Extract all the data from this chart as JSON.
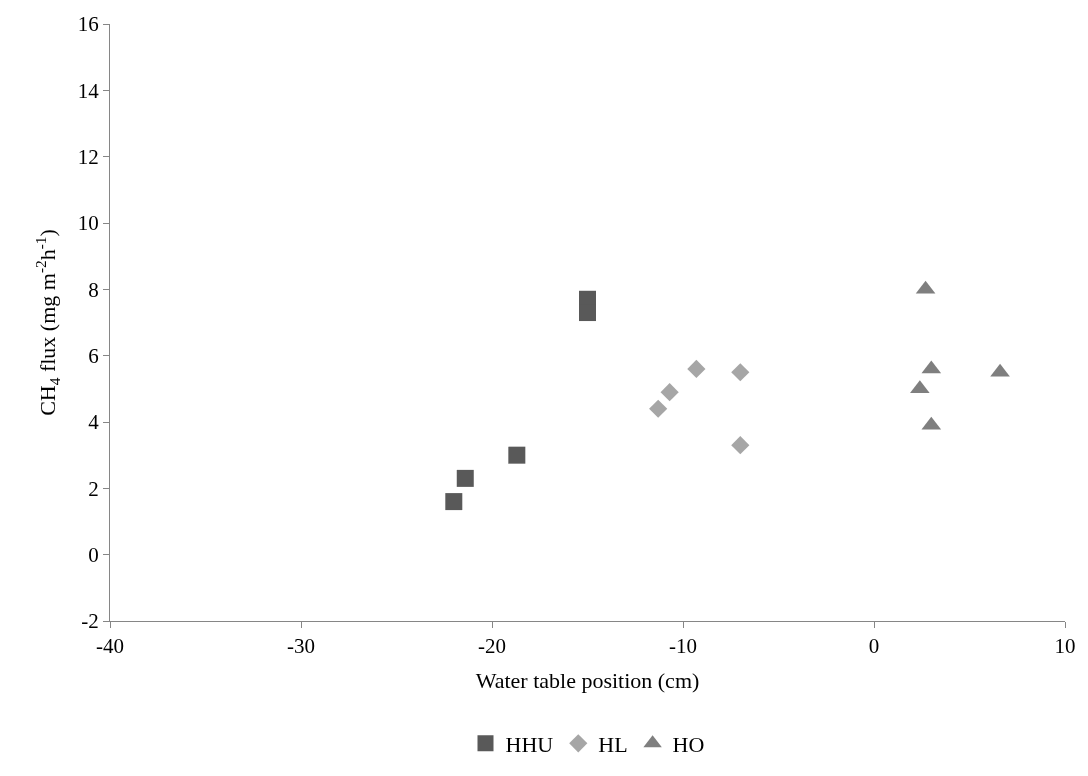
{
  "chart_data": {
    "type": "scatter",
    "xlabel": "Water table position (cm)",
    "ylabel": "CH$_{4}$ flux (mg m$^{-2}$h$^{-1}$)",
    "xlim": [
      -40,
      10
    ],
    "xticks": [
      -40,
      -30,
      -20,
      -10,
      0,
      10
    ],
    "ylim": [
      -2,
      16
    ],
    "yticks": [
      -2,
      0,
      2,
      4,
      6,
      8,
      10,
      12,
      14,
      16
    ],
    "legend": "bottom",
    "series": [
      {
        "name": "HHU",
        "color": "#595959",
        "marker": "square",
        "x": [
          -22.0,
          -21.4,
          -18.7,
          -15.0,
          -15.0
        ],
        "values": [
          1.6,
          2.3,
          3.0,
          7.7,
          7.3
        ]
      },
      {
        "name": "HL",
        "color": "#a6a6a6",
        "marker": "diamond",
        "x": [
          -11.3,
          -10.7,
          -9.3,
          -7.0,
          -7.0
        ],
        "values": [
          4.4,
          4.9,
          5.6,
          5.5,
          3.3
        ]
      },
      {
        "name": "HO",
        "color": "#7f7f7f",
        "marker": "triangle",
        "x": [
          2.7,
          3.0,
          6.6,
          2.4,
          3.0
        ],
        "values": [
          8.0,
          5.6,
          5.5,
          5.0,
          3.9
        ]
      }
    ]
  }
}
